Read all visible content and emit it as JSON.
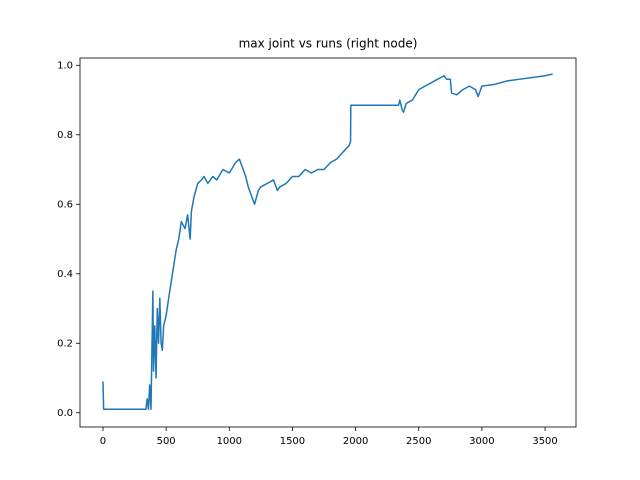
{
  "chart_data": {
    "type": "line",
    "title": "max joint vs runs (right node)",
    "x": [
      0,
      5,
      340,
      350,
      360,
      370,
      380,
      395,
      400,
      410,
      420,
      430,
      440,
      450,
      460,
      470,
      480,
      500,
      520,
      550,
      580,
      600,
      620,
      650,
      670,
      690,
      700,
      720,
      750,
      780,
      800,
      830,
      870,
      900,
      950,
      1000,
      1050,
      1080,
      1100,
      1130,
      1150,
      1180,
      1200,
      1230,
      1250,
      1300,
      1350,
      1380,
      1400,
      1450,
      1500,
      1550,
      1600,
      1650,
      1700,
      1750,
      1800,
      1850,
      1900,
      1950,
      1960,
      1962,
      2340,
      2350,
      2370,
      2380,
      2400,
      2450,
      2500,
      2550,
      2600,
      2650,
      2700,
      2720,
      2750,
      2760,
      2800,
      2850,
      2900,
      2950,
      2970,
      3000,
      3100,
      3200,
      3300,
      3400,
      3500,
      3560
    ],
    "series": [
      {
        "name": "max joint",
        "color": "#1f77b4",
        "values": [
          0.09,
          0.01,
          0.01,
          0.04,
          0.01,
          0.08,
          0.01,
          0.35,
          0.12,
          0.25,
          0.1,
          0.3,
          0.2,
          0.33,
          0.2,
          0.18,
          0.25,
          0.28,
          0.33,
          0.4,
          0.47,
          0.5,
          0.55,
          0.53,
          0.57,
          0.5,
          0.58,
          0.62,
          0.66,
          0.67,
          0.68,
          0.66,
          0.68,
          0.67,
          0.7,
          0.69,
          0.72,
          0.73,
          0.71,
          0.68,
          0.65,
          0.62,
          0.6,
          0.64,
          0.65,
          0.66,
          0.67,
          0.64,
          0.65,
          0.66,
          0.68,
          0.68,
          0.7,
          0.69,
          0.7,
          0.7,
          0.72,
          0.73,
          0.75,
          0.77,
          0.78,
          0.885,
          0.885,
          0.9,
          0.87,
          0.865,
          0.89,
          0.9,
          0.93,
          0.94,
          0.95,
          0.96,
          0.97,
          0.96,
          0.96,
          0.92,
          0.915,
          0.93,
          0.94,
          0.93,
          0.91,
          0.94,
          0.945,
          0.955,
          0.96,
          0.965,
          0.97,
          0.975
        ]
      }
    ],
    "xlim": [
      -182,
      3745
    ],
    "ylim": [
      -0.041,
      1.021
    ],
    "xticks": [
      0,
      500,
      1000,
      1500,
      2000,
      2500,
      3000,
      3500
    ],
    "yticks": [
      {
        "value": 0,
        "label": "0.0"
      },
      0.2,
      0.4,
      0.6,
      0.8,
      {
        "value": 1,
        "label": "1.0"
      }
    ]
  }
}
